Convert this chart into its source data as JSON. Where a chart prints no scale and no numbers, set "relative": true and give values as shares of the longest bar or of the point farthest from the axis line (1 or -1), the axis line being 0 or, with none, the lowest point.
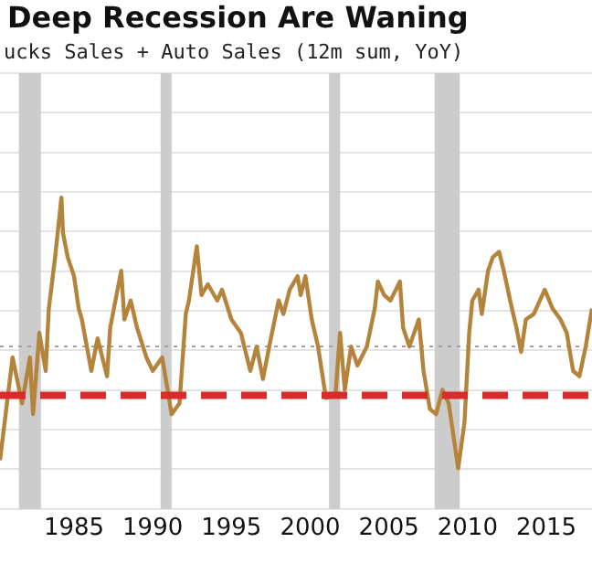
{
  "chart_data": {
    "type": "line",
    "title": "Deep Recession Are Waning",
    "subtitle": "ucks Sales + Auto Sales (12m sum, YoY)",
    "relative": true,
    "grid": "y",
    "legend": false,
    "marker": "none",
    "line_style": "solid",
    "xlim": [
      1980.3,
      2017.9
    ],
    "xticks": [
      1985,
      1990,
      1995,
      2000,
      2005,
      2010,
      2015
    ],
    "x": [
      1980.3,
      1980.7,
      1981.1,
      1981.7,
      1982.2,
      1982.4,
      1982.8,
      1983.2,
      1983.4,
      1983.8,
      1984.2,
      1984.3,
      1984.6,
      1985.0,
      1985.3,
      1985.5,
      1986.1,
      1986.5,
      1987.1,
      1987.3,
      1988.0,
      1988.2,
      1988.6,
      1989.0,
      1989.6,
      1990.0,
      1990.6,
      1991.2,
      1991.7,
      1992.1,
      1992.3,
      1992.8,
      1993.1,
      1993.5,
      1994.1,
      1994.4,
      1995.0,
      1995.6,
      1996.2,
      1996.6,
      1997.0,
      1997.4,
      1998.0,
      1998.3,
      1998.7,
      1999.2,
      1999.4,
      1999.7,
      2000.1,
      2000.5,
      2001.0,
      2001.6,
      2001.9,
      2002.2,
      2002.6,
      2003.0,
      2003.6,
      2004.1,
      2004.3,
      2004.7,
      2005.1,
      2005.7,
      2005.9,
      2006.3,
      2006.9,
      2007.2,
      2007.6,
      2008.0,
      2008.4,
      2008.8,
      2009.4,
      2009.8,
      2010.1,
      2010.3,
      2010.7,
      2010.9,
      2011.3,
      2011.6,
      2012.0,
      2012.3,
      2012.7,
      2013.1,
      2013.4,
      2013.7,
      2014.2,
      2014.9,
      2015.4,
      2015.9,
      2016.3,
      2016.7,
      2017.1,
      2017.5,
      2017.9
    ],
    "series": [
      {
        "color": "#b5843c",
        "values": [
          0.03,
          0.22,
          0.41,
          0.24,
          0.41,
          0.2,
          0.5,
          0.36,
          0.59,
          0.78,
          1,
          0.87,
          0.78,
          0.71,
          0.59,
          0.55,
          0.36,
          0.48,
          0.34,
          0.52,
          0.73,
          0.55,
          0.62,
          0.52,
          0.41,
          0.36,
          0.41,
          0.2,
          0.24,
          0.57,
          0.62,
          0.82,
          0.64,
          0.68,
          0.62,
          0.66,
          0.55,
          0.5,
          0.36,
          0.45,
          0.33,
          0.45,
          0.62,
          0.57,
          0.66,
          0.71,
          0.64,
          0.71,
          0.55,
          0.45,
          0.26,
          0.27,
          0.5,
          0.29,
          0.45,
          0.38,
          0.45,
          0.59,
          0.69,
          0.64,
          0.62,
          0.69,
          0.52,
          0.45,
          0.55,
          0.36,
          0.22,
          0.2,
          0.29,
          0.24,
          0,
          0.17,
          0.5,
          0.62,
          0.66,
          0.57,
          0.73,
          0.78,
          0.8,
          0.73,
          0.62,
          0.52,
          0.43,
          0.55,
          0.57,
          0.66,
          0.59,
          0.55,
          0.5,
          0.36,
          0.34,
          0.45,
          0.59
        ]
      }
    ],
    "ref_lines": [
      {
        "axis": "y",
        "value": 0.27,
        "color": "#d92b2b",
        "line_style": "dashed"
      },
      {
        "axis": "y",
        "value": 0.45,
        "color": "#a0a0a0",
        "line_style": "dotted"
      }
    ],
    "bands": [
      {
        "axis": "x",
        "from": 1981.5,
        "to": 1982.9,
        "color": "#cccccc"
      },
      {
        "axis": "x",
        "from": 1990.5,
        "to": 1991.2,
        "color": "#cccccc"
      },
      {
        "axis": "x",
        "from": 2001.2,
        "to": 2001.9,
        "color": "#cccccc"
      },
      {
        "axis": "x",
        "from": 2007.9,
        "to": 2009.5,
        "color": "#cccccc"
      }
    ]
  }
}
